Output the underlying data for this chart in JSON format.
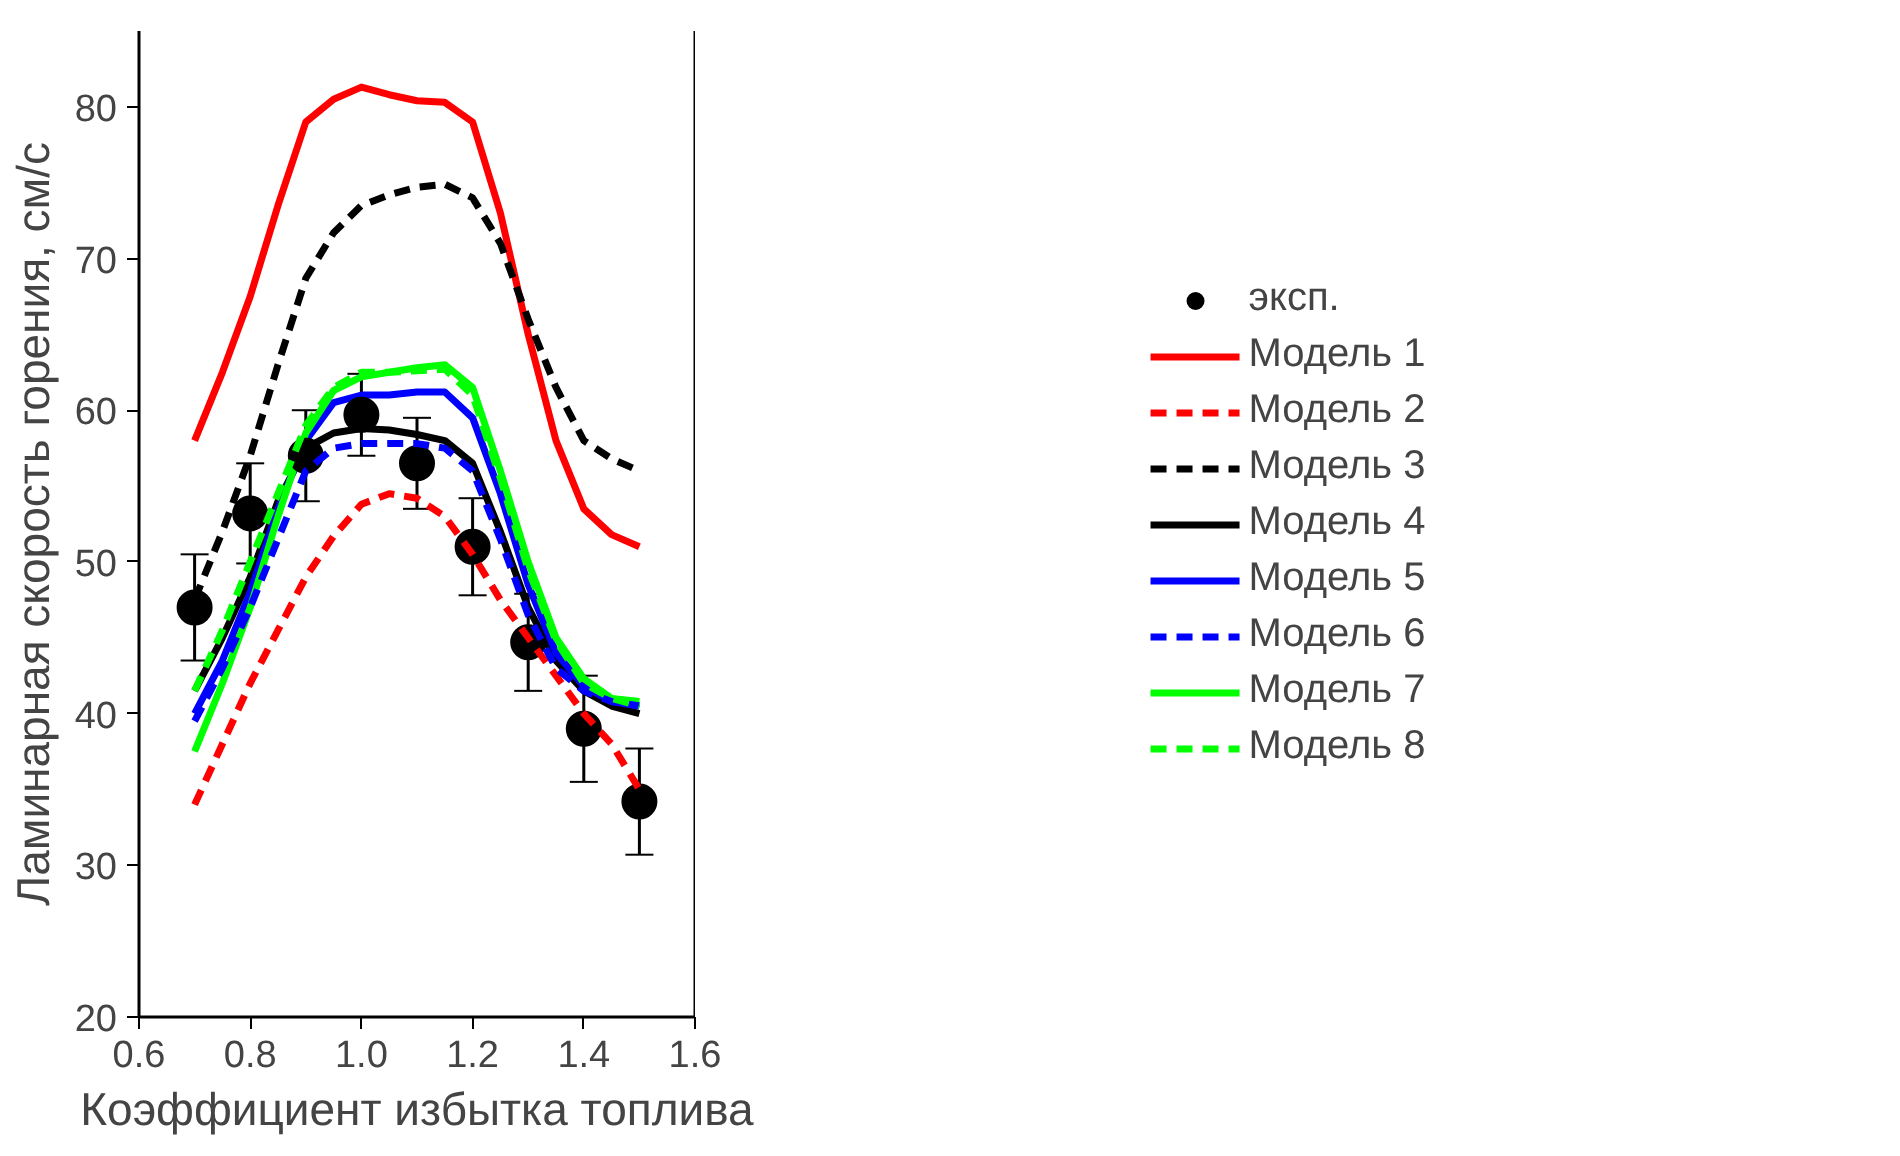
{
  "chart_data": {
    "type": "line",
    "xlabel": "Коэффициент избытка топлива",
    "ylabel": "Ламинарная скорость горения, см/с",
    "x": [
      0.7,
      0.75,
      0.8,
      0.85,
      0.9,
      0.95,
      1.0,
      1.05,
      1.1,
      1.15,
      1.2,
      1.25,
      1.3,
      1.35,
      1.4,
      1.45,
      1.5
    ],
    "xlim": [
      0.6,
      1.6
    ],
    "ylim": [
      20,
      85
    ],
    "xticks": [
      0.6,
      0.8,
      {
        "value": 1.0,
        "label": "1.0"
      },
      1.2,
      1.4,
      1.6
    ],
    "yticks": [
      20,
      30,
      40,
      50,
      60,
      70,
      80
    ],
    "grid": false,
    "legend": "right",
    "line_style": "solid",
    "marker": "none",
    "series": [
      {
        "name": "эксп.",
        "type": "scatter",
        "marker": "circle",
        "color": "#000000",
        "x": [
          0.7,
          0.8,
          0.9,
          1.0,
          1.1,
          1.2,
          1.3,
          1.4,
          1.5
        ],
        "values": [
          47,
          53.2,
          57,
          59.7,
          56.5,
          51,
          44.7,
          39,
          34.2
        ],
        "errors": [
          3.5,
          3.3,
          3,
          2.7,
          3,
          3.2,
          3.2,
          3.5,
          3.5
        ]
      },
      {
        "name": "Модель 1",
        "color": "#ff0000",
        "values": [
          58,
          62.5,
          67.5,
          73.5,
          79,
          80.5,
          81.3,
          80.8,
          80.4,
          80.3,
          79,
          73,
          65,
          58,
          53.5,
          51.8,
          51
        ]
      },
      {
        "name": "Модель 2",
        "color": "#ff0000",
        "line_style": "dashed",
        "values": [
          34,
          38,
          42,
          45.5,
          49,
          51.7,
          53.8,
          54.5,
          54.2,
          53,
          50.5,
          47.5,
          45,
          42.5,
          40,
          38,
          35
        ]
      },
      {
        "name": "Модель 3",
        "color": "#000000",
        "line_style": "dashed",
        "values": [
          47.5,
          52,
          57,
          63,
          68.7,
          71.7,
          73.5,
          74.2,
          74.7,
          74.9,
          74,
          71,
          66,
          61.5,
          58,
          56.8,
          56
        ]
      },
      {
        "name": "Модель 4",
        "color": "#000000",
        "values": [
          41.5,
          45,
          49,
          54,
          57.5,
          58.5,
          58.8,
          58.7,
          58.4,
          58,
          56.5,
          52,
          47,
          43.5,
          41.5,
          40.5,
          40
        ]
      },
      {
        "name": "Модель 5",
        "color": "#0000ff",
        "values": [
          40,
          43.5,
          48,
          53.5,
          58,
          60.5,
          61,
          61,
          61.2,
          61.2,
          59.5,
          54.5,
          48.5,
          44,
          41.8,
          40.8,
          40.5
        ]
      },
      {
        "name": "Модель 6",
        "color": "#0000ff",
        "line_style": "dashed",
        "values": [
          39.5,
          43,
          47,
          51.5,
          56,
          57.5,
          57.8,
          57.8,
          57.8,
          57.5,
          56,
          51.5,
          46.5,
          43,
          41.5,
          40.8,
          40.5
        ]
      },
      {
        "name": "Модель 7",
        "color": "#00ff00",
        "values": [
          37.5,
          42,
          47,
          53,
          58.5,
          61.3,
          62.2,
          62.5,
          62.8,
          63,
          61.5,
          56,
          50,
          45,
          42.3,
          41,
          40.8
        ]
      },
      {
        "name": "Модель 8",
        "color": "#00ff00",
        "line_style": "dashed",
        "values": [
          41.5,
          45.5,
          50,
          54.5,
          59,
          61.5,
          62.5,
          62.5,
          62.6,
          62.7,
          61,
          55.5,
          49.5,
          44.8,
          42,
          41,
          40.5
        ]
      }
    ]
  }
}
